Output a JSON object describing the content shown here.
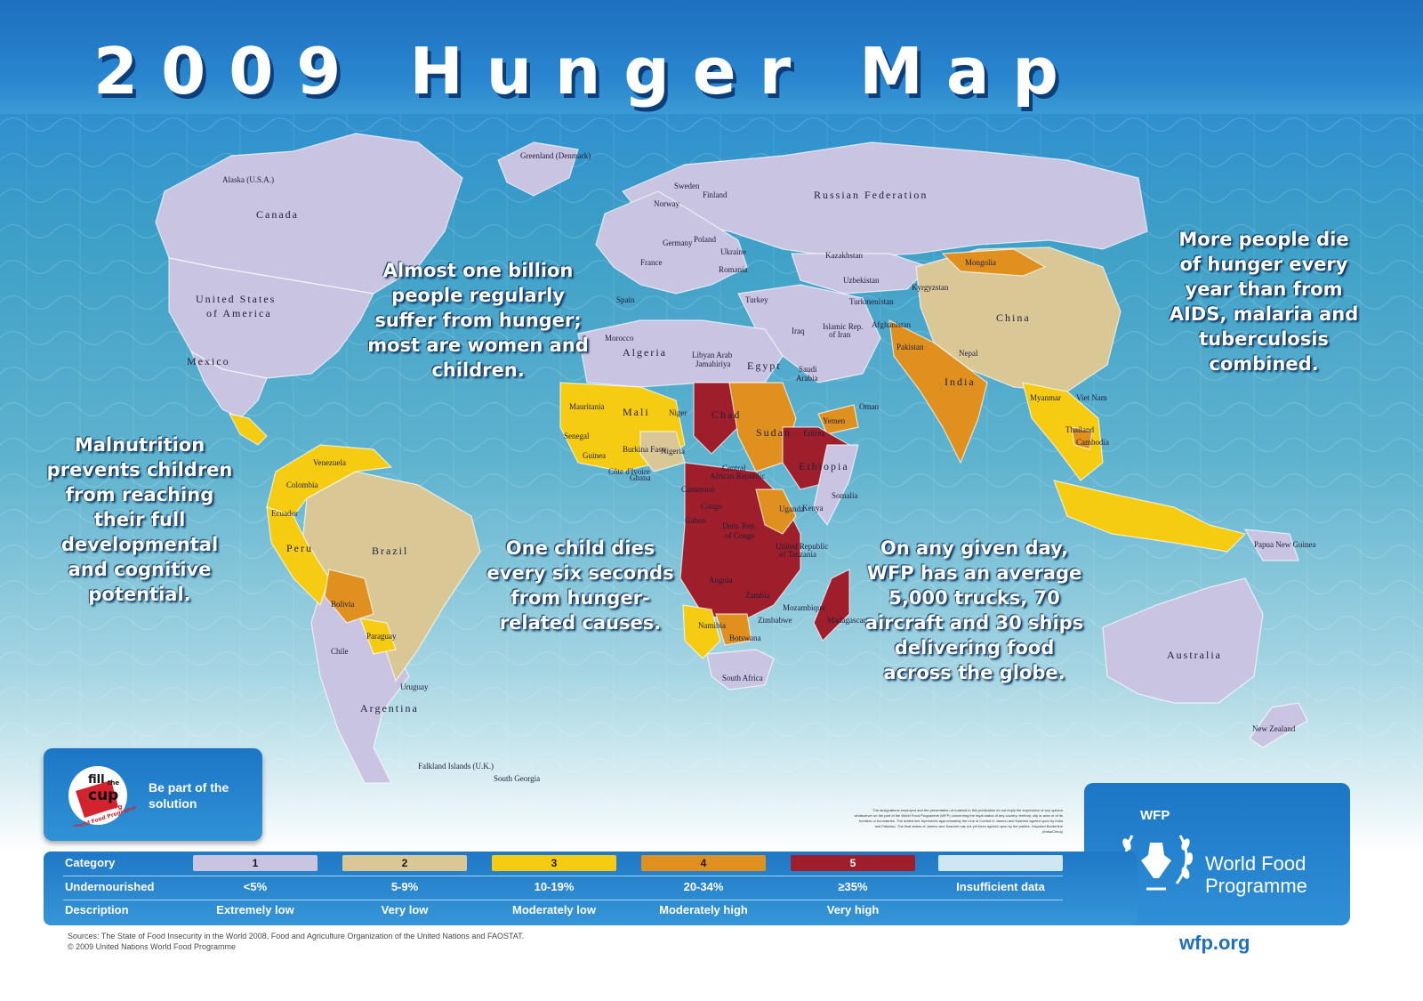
{
  "title": "2009 Hunger Map",
  "messages": {
    "billion": "Almost one billion people regularly suffer from hunger; most are women and children.",
    "aids": "More people die of hunger every year than from AIDS, malaria and tuberculosis combined.",
    "malnutrition": "Malnutrition prevents children from reaching their full developmental and cognitive potential.",
    "child": "One child dies every six seconds from hunger-related causes.",
    "wfp_trucks": "On any given day, WFP has an average 5,000 trucks, 70 aircraft and 30 ships delivering food across the globe."
  },
  "colors": {
    "cat1": "#c9c4e2",
    "cat2": "#d9c796",
    "cat3": "#f5cc12",
    "cat4": "#e0901f",
    "cat5": "#9e1f2b",
    "insufficient": "#cfe6f3",
    "ocean": "#4aa5c8"
  },
  "country_labels": {
    "canada": "Canada",
    "alaska": "Alaska (U.S.A.)",
    "greenland": "Greenland (Denmark)",
    "usa_1": "United States",
    "usa_2": "of America",
    "mexico": "Mexico",
    "venezuela": "Venezuela",
    "colombia": "Colombia",
    "ecuador": "Ecuador",
    "peru": "Peru",
    "brazil": "Brazil",
    "bolivia": "Bolivia",
    "paraguay": "Paraguay",
    "chile": "Chile",
    "argentina": "Argentina",
    "uruguay": "Uruguay",
    "falkland": "Falkland Islands (U.K.)",
    "south_georgia": "South Georgia",
    "russia": "Russian Federation",
    "kazakhstan": "Kazakhstan",
    "mongolia": "Mongolia",
    "china": "China",
    "india": "India",
    "nepal": "Nepal",
    "pakistan": "Pakistan",
    "afghanistan": "Afghanistan",
    "iran_1": "Islamic Rep.",
    "iran_2": "of Iran",
    "iraq": "Iraq",
    "turkey": "Turkey",
    "saudi_1": "Saudi",
    "saudi_2": "Arabia",
    "yemen": "Yemen",
    "oman": "Oman",
    "uzbekistan": "Uzbekistan",
    "turkmenistan": "Turkmenistan",
    "kyrgyzstan": "Kyrgyzstan",
    "myanmar": "Myanmar",
    "thailand": "Thailand",
    "viet_nam": "Viet Nam",
    "cambodia": "Cambodia",
    "sweden": "Sweden",
    "finland": "Finland",
    "norway": "Norway",
    "germany": "Germany",
    "poland": "Poland",
    "france": "France",
    "spain": "Spain",
    "ukraine": "Ukraine",
    "romania": "Romania",
    "morocco": "Morocco",
    "algeria": "Algeria",
    "libya_1": "Libyan Arab",
    "libya_2": "Jamahiriya",
    "egypt": "Egypt",
    "mauritania": "Mauritania",
    "mali": "Mali",
    "niger": "Niger",
    "chad": "Chad",
    "sudan": "Sudan",
    "ethiopia": "Ethiopia",
    "somalia": "Somalia",
    "nigeria": "Nigeria",
    "car_1": "Central",
    "car_2": "African Republic",
    "drc_1": "Dem. Rep.",
    "drc_2": "of Congo",
    "kenya": "Kenya",
    "uganda": "Uganda",
    "tanzania_1": "United Republic",
    "tanzania_2": "of Tanzania",
    "angola": "Angola",
    "zambia": "Zambia",
    "namibia": "Namibia",
    "botswana": "Botswana",
    "zimbabwe": "Zimbabwe",
    "mozambique": "Mozambique",
    "madagascar": "Madagascar",
    "south_africa": "South Africa",
    "gabon": "Gabon",
    "senegal": "Senegal",
    "guinea": "Guinea",
    "cote": "Côte d'Ivoire",
    "ghana": "Ghana",
    "burkina": "Burkina Faso",
    "cameroon": "Cameroon",
    "congo": "Congo",
    "eritrea": "Eritrea",
    "australia": "Australia",
    "new_zealand": "New Zealand",
    "papua": "Papua New Guinea"
  },
  "fill_cup": {
    "tagline": "Be part of the solution",
    "logo_fill": "fill",
    "logo_the": "the",
    "logo_cup": "cup",
    "logo_url": "wfp.org",
    "logo_ring": "World Food Programme"
  },
  "wfp": {
    "abbr": "WFP",
    "name": "World Food Programme",
    "url": "wfp.org"
  },
  "legend": {
    "row_labels": {
      "category": "Category",
      "undernourished": "Undernourished",
      "description": "Description"
    },
    "categories": [
      {
        "id": "1",
        "undernourished": "<5%",
        "description": "Extremely low",
        "color": "#c9c4e2"
      },
      {
        "id": "2",
        "undernourished": "5-9%",
        "description": "Very low",
        "color": "#d9c796"
      },
      {
        "id": "3",
        "undernourished": "10-19%",
        "description": "Moderately low",
        "color": "#f5cc12"
      },
      {
        "id": "4",
        "undernourished": "20-34%",
        "description": "Moderately high",
        "color": "#e0901f"
      },
      {
        "id": "5",
        "undernourished": "≥35%",
        "description": "Very high",
        "color": "#9e1f2b"
      },
      {
        "id": "",
        "undernourished": "Insufficient data",
        "description": "",
        "color": "#cfe6f3"
      }
    ]
  },
  "disclaimer": "The designations employed and the presentation of material in this publication do not imply the expression of any opinion whatsoever on the part of the World Food Programme (WFP) concerning the legal status of any country, territory, city or area or of its frontiers or boundaries. The dotted line represents approximately the Line of Control in Jammu and Kashmir agreed upon by India and Pakistan. The final status of Jammu and Kashmir has not yet been agreed upon by the parties. Disputed Borderline (India/China)",
  "sources": {
    "line1": "Sources: The State of Food Insecurity in the World 2008, Food and Agriculture Organization of the United Nations and FAOSTAT.",
    "line2": "© 2009 United Nations World Food Programme"
  }
}
